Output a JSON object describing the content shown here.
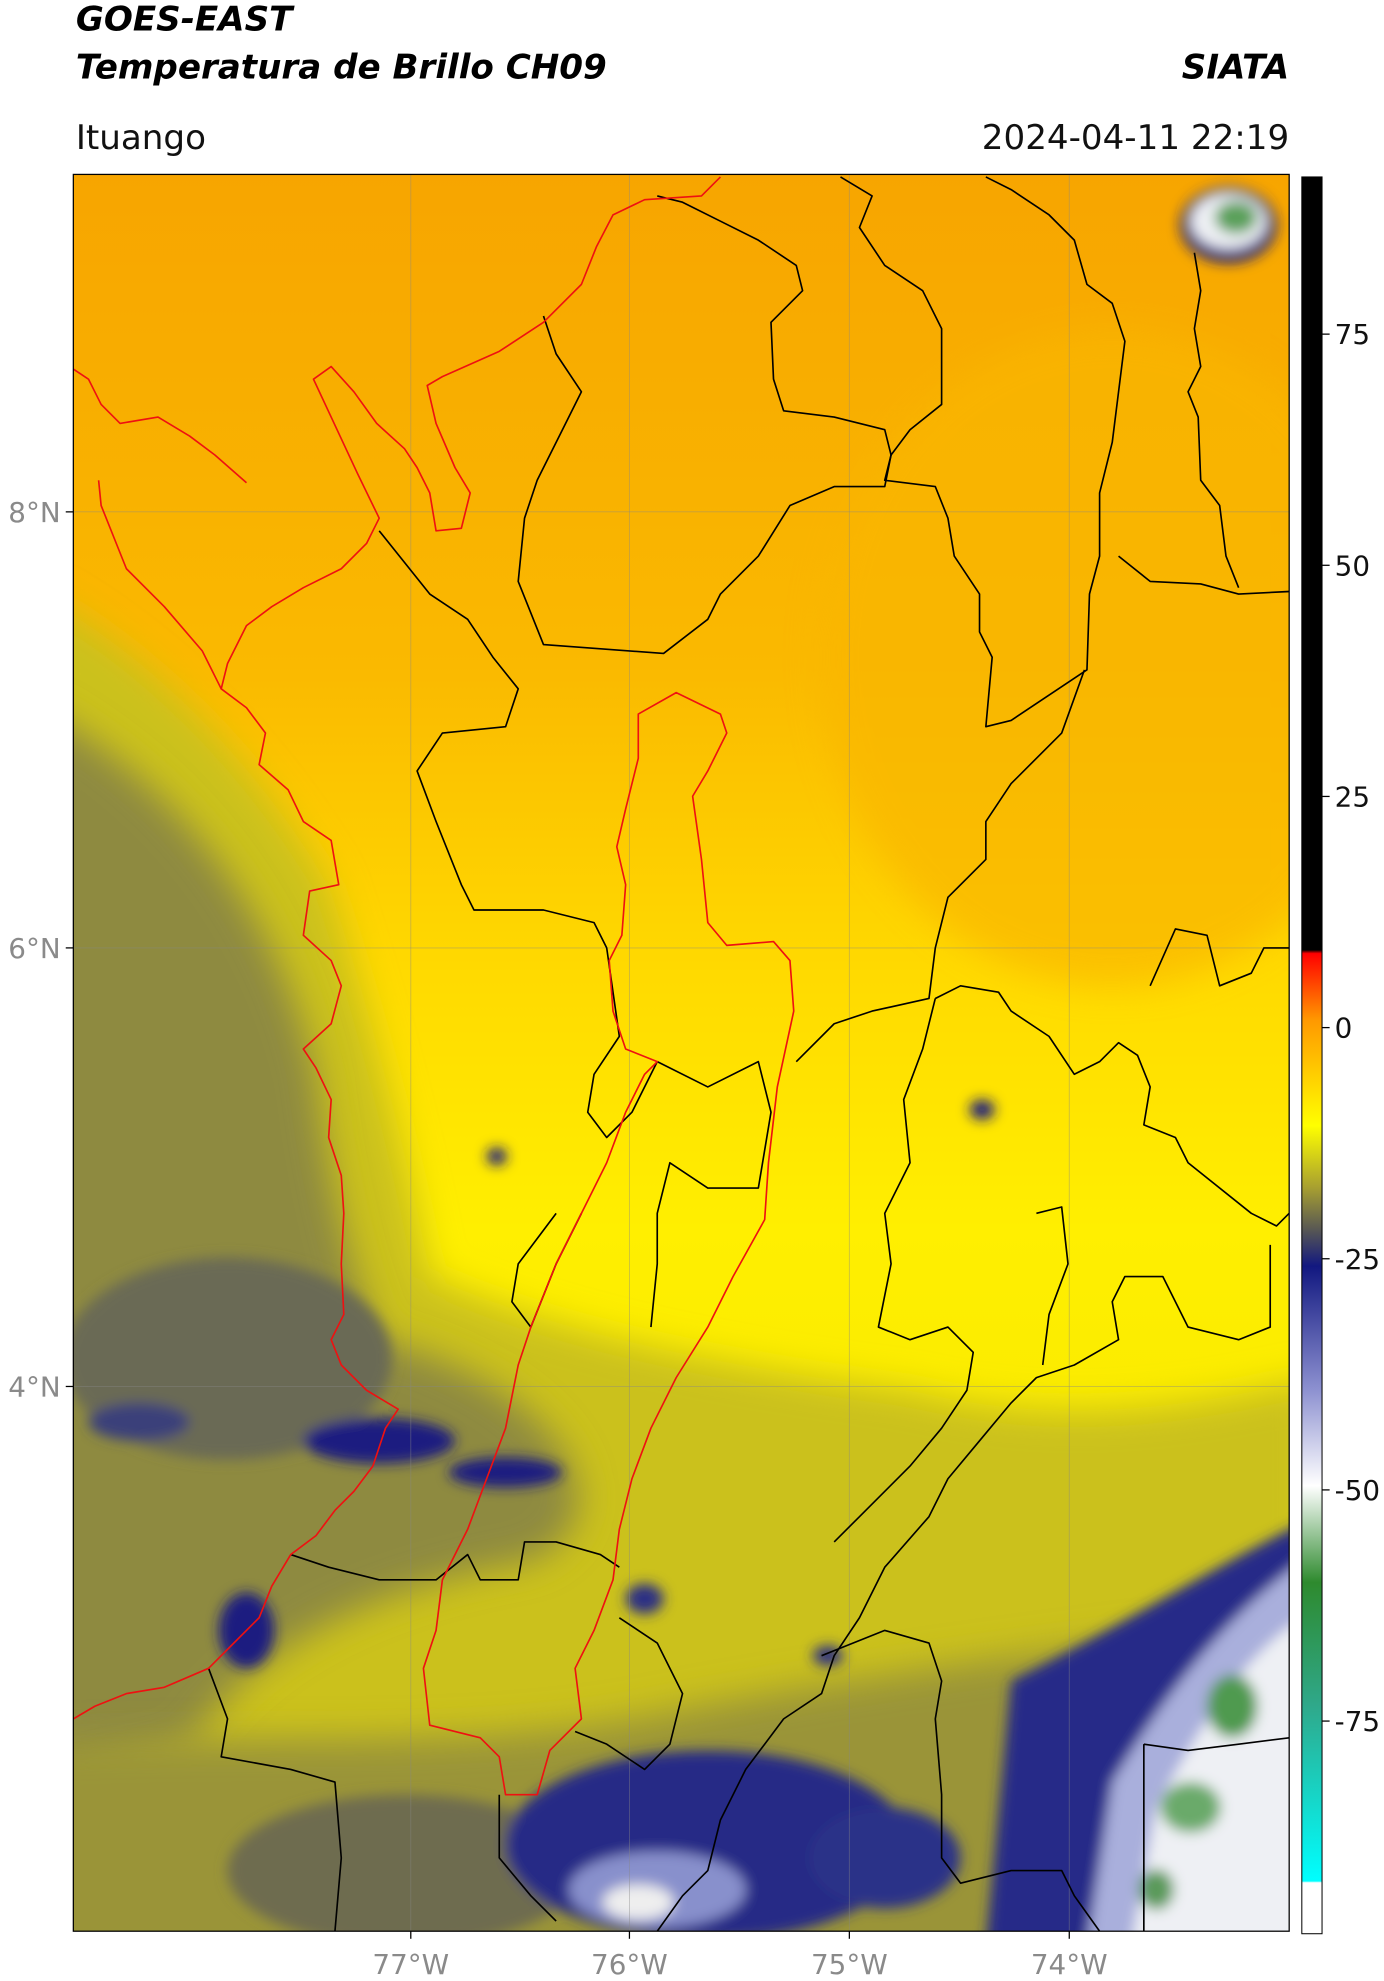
{
  "header": {
    "title_line1": "GOES-EAST",
    "title_line2": "Temperatura de Brillo CH09",
    "agency": "SIATA",
    "location": "Ituango",
    "timestamp": "2024-04-11 22:19"
  },
  "map": {
    "lat_labels": [
      "8°N",
      "6°N",
      "4°N"
    ],
    "lon_labels": [
      "77°W",
      "76°W",
      "75°W",
      "74°W"
    ]
  },
  "colorbar": {
    "lim": [
      -98,
      92
    ],
    "ticks": [
      75,
      50,
      25,
      0,
      -25,
      -50,
      -75
    ]
  }
}
